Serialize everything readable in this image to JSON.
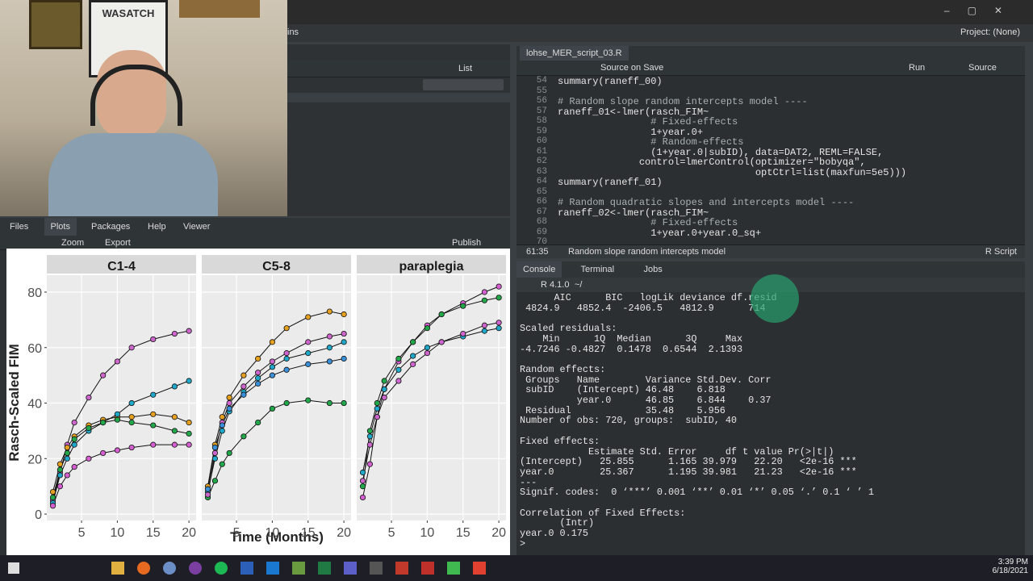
{
  "window": {
    "project": "Project: (None)",
    "menu_fragment": "ins"
  },
  "webcam": {
    "poster_text": "WASATCH"
  },
  "environment_pane": {
    "view_mode": "List"
  },
  "plots_pane": {
    "tabs": [
      "Files",
      "Plots",
      "Packages",
      "Help",
      "Viewer"
    ],
    "active_tab": 1,
    "zoom": "Zoom",
    "export": "Export",
    "publish": "Publish"
  },
  "chart_data": {
    "type": "line",
    "y_label": "Rasch-Scaled FIM",
    "x_label": "Time (Months)",
    "xlim": [
      0.15,
      21
    ],
    "ylim": [
      -2.3,
      86.1
    ],
    "xticks": [
      5,
      10,
      15,
      20
    ],
    "yticks": [
      0,
      20,
      40,
      60,
      80
    ],
    "grid": true,
    "facets": [
      {
        "title": "C1-4",
        "series": [
          {
            "color": "#cc66cc",
            "x": [
              1,
              2,
              3,
              4,
              6,
              8,
              10,
              12,
              15,
              18,
              20
            ],
            "values": [
              5,
              15,
              25,
              33,
              42,
              50,
              55,
              60,
              63,
              65,
              66
            ]
          },
          {
            "color": "#e6a020",
            "x": [
              1,
              2,
              3,
              4,
              6,
              8,
              10,
              12,
              15,
              18,
              20
            ],
            "values": [
              8,
              18,
              24,
              28,
              32,
              34,
              35,
              35,
              36,
              35,
              33
            ]
          },
          {
            "color": "#1fa8c9",
            "x": [
              1,
              2,
              3,
              4,
              6,
              8,
              10,
              12,
              15,
              18,
              20
            ],
            "values": [
              4,
              14,
              20,
              25,
              30,
              33,
              36,
              40,
              43,
              46,
              48
            ]
          },
          {
            "color": "#22a84a",
            "x": [
              1,
              2,
              3,
              4,
              6,
              8,
              10,
              12,
              15,
              18,
              20
            ],
            "values": [
              6,
              16,
              22,
              27,
              31,
              33,
              34,
              33,
              32,
              30,
              29
            ]
          },
          {
            "color": "#d45fd0",
            "x": [
              1,
              2,
              3,
              4,
              6,
              8,
              10,
              12,
              15,
              18,
              20
            ],
            "values": [
              3,
              10,
              14,
              17,
              20,
              22,
              23,
              24,
              25,
              25,
              25
            ]
          }
        ]
      },
      {
        "title": "C5-8",
        "series": [
          {
            "color": "#e6a020",
            "x": [
              1,
              2,
              3,
              4,
              6,
              8,
              10,
              12,
              15,
              18,
              20
            ],
            "values": [
              10,
              25,
              35,
              42,
              50,
              56,
              62,
              67,
              71,
              73,
              72
            ]
          },
          {
            "color": "#22a84a",
            "x": [
              1,
              2,
              3,
              4,
              6,
              8,
              10,
              12,
              15,
              18,
              20
            ],
            "values": [
              6,
              12,
              18,
              22,
              28,
              33,
              38,
              40,
              41,
              40,
              40
            ]
          },
          {
            "color": "#1fa8c9",
            "x": [
              1,
              2,
              3,
              4,
              6,
              8,
              10,
              12,
              15,
              18,
              20
            ],
            "values": [
              8,
              20,
              30,
              37,
              44,
              49,
              53,
              56,
              58,
              60,
              62
            ]
          },
          {
            "color": "#cc66cc",
            "x": [
              1,
              2,
              3,
              4,
              6,
              8,
              10,
              12,
              15,
              18,
              20
            ],
            "values": [
              7,
              22,
              33,
              40,
              46,
              51,
              55,
              58,
              62,
              64,
              65
            ]
          },
          {
            "color": "#3a8fd9",
            "x": [
              1,
              2,
              3,
              4,
              6,
              8,
              10,
              12,
              15,
              18,
              20
            ],
            "values": [
              9,
              24,
              32,
              38,
              43,
              47,
              50,
              52,
              54,
              55,
              56
            ]
          }
        ]
      },
      {
        "title": "paraplegia",
        "series": [
          {
            "color": "#d45fd0",
            "x": [
              1,
              2,
              3,
              4,
              6,
              8,
              10,
              12,
              15,
              18,
              20
            ],
            "values": [
              6,
              18,
              35,
              45,
              55,
              62,
              68,
              72,
              76,
              80,
              82
            ]
          },
          {
            "color": "#22a84a",
            "x": [
              1,
              2,
              3,
              4,
              6,
              8,
              10,
              12,
              15,
              18,
              20
            ],
            "values": [
              10,
              30,
              40,
              48,
              56,
              62,
              67,
              72,
              75,
              77,
              78
            ]
          },
          {
            "color": "#1fa8c9",
            "x": [
              1,
              2,
              3,
              4,
              6,
              8,
              10,
              12,
              15,
              18,
              20
            ],
            "values": [
              15,
              28,
              38,
              45,
              52,
              57,
              60,
              62,
              64,
              66,
              67
            ]
          },
          {
            "color": "#cc66cc",
            "x": [
              1,
              2,
              3,
              4,
              6,
              8,
              10,
              12,
              15,
              18,
              20
            ],
            "values": [
              12,
              25,
              35,
              42,
              48,
              54,
              58,
              62,
              65,
              68,
              69
            ]
          }
        ]
      }
    ]
  },
  "editor": {
    "file_tab": "lohse_MER_script_03.R",
    "source_on_save": "Source on Save",
    "run": "Run",
    "source": "Source",
    "lines": [
      {
        "n": 54,
        "code": "summary(raneff_00)"
      },
      {
        "n": 55
      },
      {
        "n": 56,
        "code": "# Random slope random intercepts model ----"
      },
      {
        "n": 57,
        "code": "raneff_01<-lmer(rasch_FIM~"
      },
      {
        "n": 58,
        "code": "                # Fixed-effects"
      },
      {
        "n": 59,
        "code": "                1+year.0+"
      },
      {
        "n": 60,
        "code": "                # Random-effects"
      },
      {
        "n": 61,
        "code": "                (1+year.0|subID), data=DAT2, REML=FALSE,"
      },
      {
        "n": 62,
        "code": "              control=lmerControl(optimizer=\"bobyqa\","
      },
      {
        "n": 63,
        "code": "                                  optCtrl=list(maxfun=5e5)))"
      },
      {
        "n": 64,
        "code": "summary(raneff_01)"
      },
      {
        "n": 65
      },
      {
        "n": 66,
        "code": "# Random quadratic slopes and intercepts model ----"
      },
      {
        "n": 67,
        "code": "raneff_02<-lmer(rasch_FIM~"
      },
      {
        "n": 68,
        "code": "                # Fixed-effects"
      },
      {
        "n": 69,
        "code": "                1+year.0+year.0_sq+"
      },
      {
        "n": 70
      }
    ],
    "cursor": "61:35",
    "section": "Random slope random intercepts model",
    "file_type": "R Script"
  },
  "console_pane": {
    "tabs": [
      "Console",
      "Terminal",
      "Jobs"
    ],
    "r_version": "R 4.1.0",
    "working_dir": "~/",
    "lines": [
      "      AIC      BIC   logLik deviance df.resid",
      " 4824.9   4852.4  -2406.5   4812.9      714",
      null,
      "Scaled residuals:",
      "    Min      1Q  Median      3Q     Max",
      "-4.7246 -0.4827  0.1478  0.6544  2.1393",
      null,
      "Random effects:",
      " Groups   Name        Variance Std.Dev. Corr",
      " subID    (Intercept) 46.48    6.818",
      "          year.0      46.85    6.844    0.37",
      " Residual             35.48    5.956",
      "Number of obs: 720, groups:  subID, 40",
      null,
      "Fixed effects:",
      "            Estimate Std. Error     df t value Pr(>|t|)",
      "(Intercept)   25.855      1.165 39.979   22.20   <2e-16 ***",
      "year.0        25.367      1.195 39.981   21.23   <2e-16 ***",
      "---",
      "Signif. codes:  0 ‘***’ 0.001 ‘**’ 0.01 ‘*’ 0.05 ‘.’ 0.1 ‘ ’ 1",
      null,
      "Correlation of Fixed Effects:",
      "       (Intr)",
      "year.0 0.175",
      ">"
    ]
  },
  "taskbar": {
    "time": "3:39 PM",
    "date": "6/18/2021"
  }
}
